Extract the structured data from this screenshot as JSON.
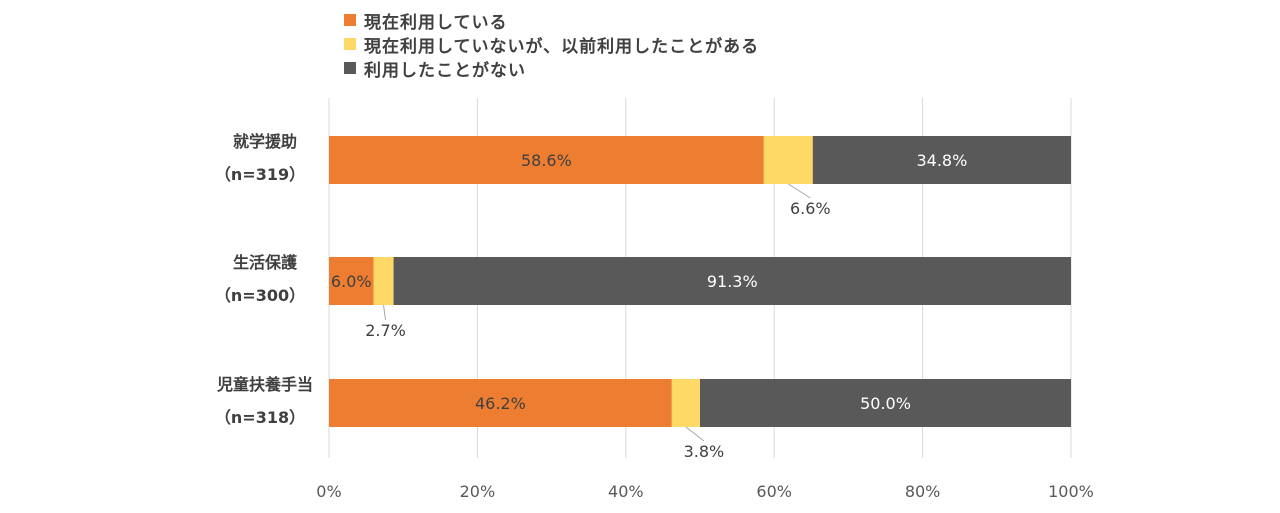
{
  "chart_data": {
    "type": "bar",
    "orientation": "horizontal",
    "stacked": true,
    "categories": [
      {
        "name": "就学援助",
        "n": "（n=319）"
      },
      {
        "name": "生活保護",
        "n": "（n=300）"
      },
      {
        "name": "児童扶養手当",
        "n": "（n=318）"
      }
    ],
    "series": [
      {
        "name": "現在利用している",
        "color": "#ED7D31",
        "values": [
          58.6,
          6.0,
          46.2
        ],
        "labels": [
          "58.6%",
          "6.0%",
          "46.2%"
        ]
      },
      {
        "name": "現在利用していないが、以前利用したことがある",
        "color": "#FFD966",
        "values": [
          6.6,
          2.7,
          3.8
        ],
        "labels": [
          "6.6%",
          "2.7%",
          "3.8%"
        ]
      },
      {
        "name": "利用したことがない",
        "color": "#595959",
        "values": [
          34.8,
          91.3,
          50.0
        ],
        "labels": [
          "34.8%",
          "91.3%",
          "50.0%"
        ]
      }
    ],
    "xlim": [
      0,
      100
    ],
    "xticks": [
      "0%",
      "20%",
      "40%",
      "60%",
      "80%",
      "100%"
    ],
    "grid": true,
    "legend_position": "top"
  }
}
